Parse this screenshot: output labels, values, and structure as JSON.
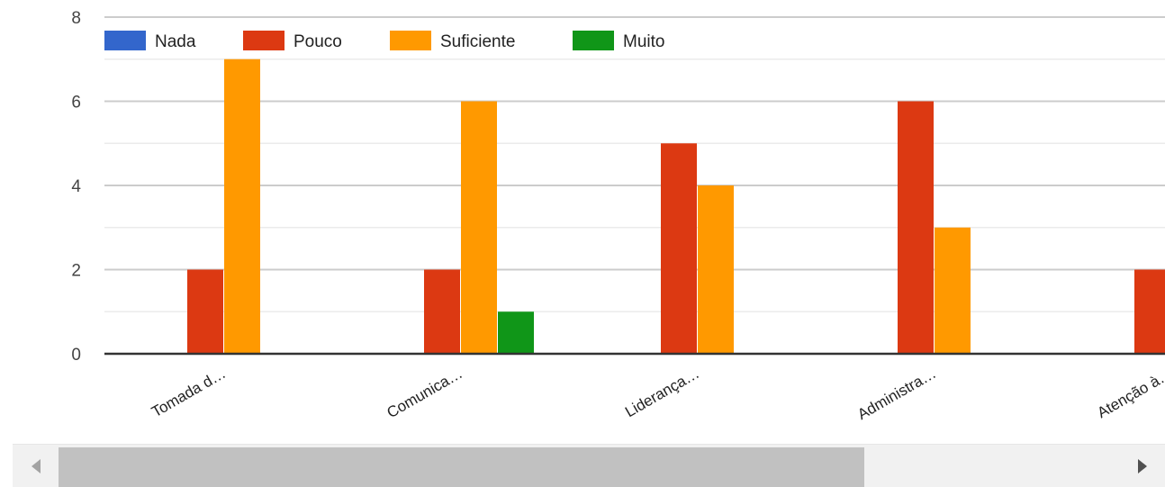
{
  "chart_data": {
    "type": "bar",
    "categories": [
      "Tomada d…",
      "Comunica…",
      "Liderança…",
      "Administra…",
      "Atenção à…"
    ],
    "series": [
      {
        "name": "Nada",
        "values": [
          0,
          0,
          0,
          0,
          0
        ],
        "color": "#3366cc"
      },
      {
        "name": "Pouco",
        "values": [
          2,
          2,
          5,
          6,
          2
        ],
        "color": "#dc3912"
      },
      {
        "name": "Suficiente",
        "values": [
          7,
          6,
          4,
          3,
          null
        ],
        "color": "#ff9900"
      },
      {
        "name": "Muito",
        "values": [
          0,
          1,
          0,
          0,
          null
        ],
        "color": "#109618"
      }
    ],
    "ylim": [
      0,
      8
    ],
    "yticks": [
      "0",
      "2",
      "4",
      "6",
      "8"
    ],
    "grid": true,
    "legend_position": "top"
  },
  "scrollbar": {
    "left_icon": "chevron-left-icon",
    "right_icon": "chevron-right-icon"
  }
}
